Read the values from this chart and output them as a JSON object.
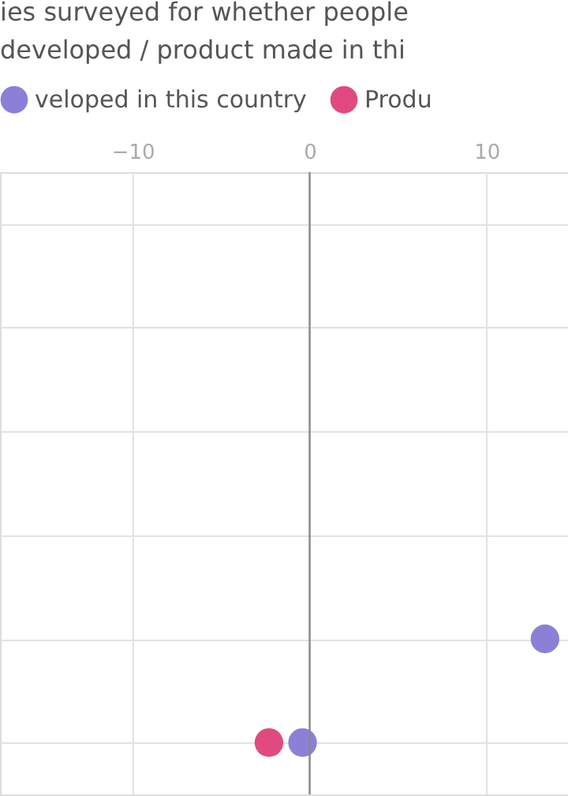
{
  "chart_data": {
    "type": "scatter",
    "title": [
      "ies surveyed for whether people",
      "developed / product made in thi"
    ],
    "categories": [
      null,
      null,
      null,
      null,
      null,
      null
    ],
    "orientation": "horizontal",
    "series": [
      {
        "name": "veloped in this country",
        "color": "#8a80d8",
        "values": [
          null,
          null,
          null,
          null,
          13.3,
          -0.4
        ]
      },
      {
        "name": "Produ",
        "color": "#e04a80",
        "values": [
          null,
          null,
          null,
          null,
          null,
          -2.3
        ]
      }
    ],
    "xlim": [
      -17.5,
      14.6
    ],
    "xticks": [
      -10,
      0,
      10
    ],
    "ref_lines": [
      {
        "axis": "x",
        "value": 0,
        "color": "#888888"
      }
    ],
    "grid": true,
    "legend": "top",
    "marker": "circle",
    "tick_labels": "x"
  }
}
